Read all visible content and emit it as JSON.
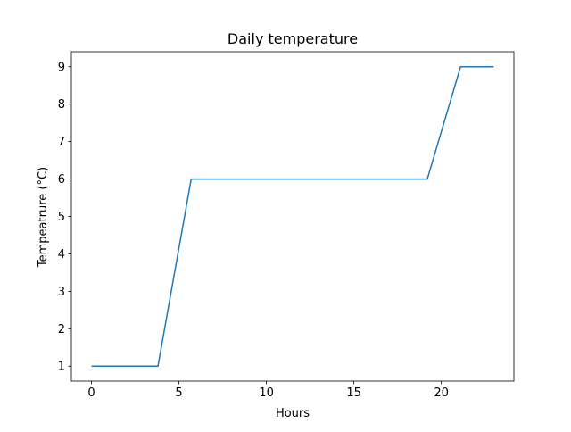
{
  "chart_data": {
    "type": "line",
    "title": "Daily temperature",
    "xlabel": "Hours",
    "ylabel": "Tempeatrure (°C)",
    "xlim": [
      -1.15,
      24.15
    ],
    "ylim": [
      0.6,
      9.4
    ],
    "xticks": [
      0,
      5,
      10,
      15,
      20
    ],
    "yticks": [
      1,
      2,
      3,
      4,
      5,
      6,
      7,
      8,
      9
    ],
    "grid": false,
    "series": [
      {
        "color": "#1f77b4",
        "x": [
          0,
          3.8,
          5.7,
          19.2,
          21.1,
          23
        ],
        "y": [
          1,
          1,
          6,
          6,
          9,
          9
        ]
      }
    ]
  }
}
